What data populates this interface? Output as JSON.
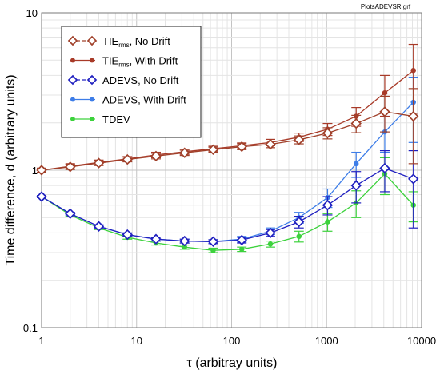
{
  "file_label": "PlotsADEVSR.grf",
  "chart_data": {
    "type": "line",
    "xlabel": "τ (arbitray units)",
    "ylabel": "Time difference, d (arbitrary units)",
    "xscale": "log",
    "yscale": "log",
    "xlim": [
      1,
      10000
    ],
    "ylim": [
      0.1,
      10
    ],
    "grid": true,
    "legend_position": "top-left",
    "x_ticks": [
      "1",
      "10",
      "100",
      "1000",
      "10000"
    ],
    "y_ticks": [
      "0.1",
      "1",
      "10"
    ],
    "x": [
      1,
      2,
      4,
      8,
      16,
      32,
      64,
      128,
      256,
      512,
      1024,
      2048,
      4096,
      8192
    ],
    "series": [
      {
        "name": "TIErms, No Drift",
        "legend_main": "TIE",
        "legend_sub": "rms",
        "legend_rest": ", No Drift",
        "color": "#a0402a",
        "marker": "diamond-open",
        "dashed": true,
        "values": [
          1.0,
          1.05,
          1.11,
          1.17,
          1.23,
          1.29,
          1.35,
          1.41,
          1.46,
          1.56,
          1.72,
          1.98,
          2.35,
          2.2
        ],
        "errors": [
          0.03,
          0.04,
          0.04,
          0.04,
          0.05,
          0.05,
          0.05,
          0.06,
          0.07,
          0.09,
          0.14,
          0.25,
          0.6,
          1.1
        ]
      },
      {
        "name": "TIErms, With Drift",
        "legend_main": "TIE",
        "legend_sub": "rms",
        "legend_rest": ", With Drift",
        "color": "#a83a28",
        "marker": "circle",
        "dashed": false,
        "values": [
          1.0,
          1.06,
          1.12,
          1.18,
          1.25,
          1.31,
          1.37,
          1.43,
          1.5,
          1.62,
          1.82,
          2.2,
          3.1,
          4.3
        ],
        "errors": [
          0.03,
          0.04,
          0.04,
          0.04,
          0.05,
          0.05,
          0.05,
          0.06,
          0.07,
          0.1,
          0.16,
          0.3,
          0.9,
          2.0
        ]
      },
      {
        "name": "ADEVS, No Drift",
        "legend_main": "ADEVS, No Drift",
        "color": "#2020c0",
        "marker": "diamond-open",
        "dashed": true,
        "values": [
          0.68,
          0.53,
          0.44,
          0.39,
          0.365,
          0.355,
          0.352,
          0.36,
          0.4,
          0.47,
          0.6,
          0.8,
          1.03,
          0.88
        ],
        "errors": [
          0.01,
          0.01,
          0.01,
          0.01,
          0.01,
          0.01,
          0.01,
          0.015,
          0.02,
          0.04,
          0.08,
          0.18,
          0.3,
          0.45
        ]
      },
      {
        "name": "ADEVS, With Drift",
        "legend_main": "ADEVS, With Drift",
        "color": "#3d7de8",
        "marker": "circle",
        "dashed": false,
        "values": [
          0.68,
          0.53,
          0.44,
          0.39,
          0.365,
          0.355,
          0.352,
          0.365,
          0.41,
          0.5,
          0.67,
          1.1,
          1.75,
          2.7
        ],
        "errors": [
          0.01,
          0.01,
          0.01,
          0.01,
          0.01,
          0.01,
          0.01,
          0.015,
          0.02,
          0.04,
          0.09,
          0.2,
          0.45,
          1.2
        ]
      },
      {
        "name": "TDEV",
        "legend_main": "TDEV",
        "color": "#3cd23c",
        "marker": "circle",
        "dashed": false,
        "values": [
          0.68,
          0.52,
          0.43,
          0.375,
          0.345,
          0.325,
          0.31,
          0.315,
          0.34,
          0.38,
          0.47,
          0.62,
          0.95,
          0.6
        ],
        "errors": [
          0.01,
          0.01,
          0.01,
          0.01,
          0.01,
          0.01,
          0.01,
          0.01,
          0.015,
          0.03,
          0.06,
          0.12,
          0.25,
          0.13
        ]
      }
    ]
  }
}
